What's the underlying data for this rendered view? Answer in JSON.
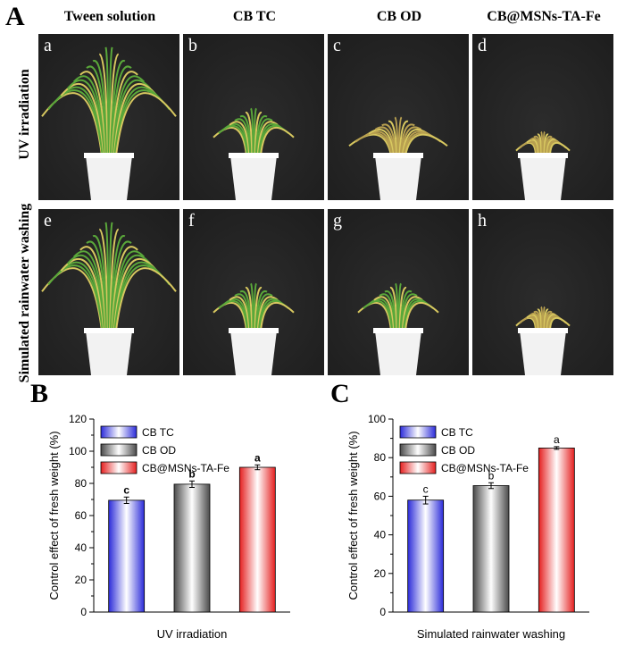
{
  "panel_letters": {
    "a": "A",
    "b": "B",
    "c": "C"
  },
  "column_titles": [
    "Tween solution",
    "CB TC",
    "CB OD",
    "CB@MSNs-TA-Fe"
  ],
  "row_titles": [
    "UV irradiation",
    "Simulated rainwater washing"
  ],
  "photos": [
    {
      "label": "a",
      "plant": "tall-healthy"
    },
    {
      "label": "b",
      "plant": "small-green"
    },
    {
      "label": "c",
      "plant": "yellowing"
    },
    {
      "label": "d",
      "plant": "wilted"
    },
    {
      "label": "e",
      "plant": "tall-healthy"
    },
    {
      "label": "f",
      "plant": "small-green"
    },
    {
      "label": "g",
      "plant": "small-green"
    },
    {
      "label": "h",
      "plant": "wilted"
    }
  ],
  "colors": {
    "photo_bg": "#1e1e1e",
    "pot": "#f2f2f2",
    "leaf_green": "#5aa83a",
    "leaf_yellow": "#b8a050",
    "bar_blue": "#2b2bd9",
    "bar_gray": "#4a4a4a",
    "bar_red": "#e52020"
  },
  "chart_data": [
    {
      "type": "bar",
      "panel": "B",
      "categories": [
        "CB TC",
        "CB OD",
        "CB@MSNs-TA-Fe"
      ],
      "values": [
        69.5,
        79.5,
        90
      ],
      "errors": [
        2,
        2,
        1.5
      ],
      "significance": [
        "c",
        "b",
        "a"
      ],
      "xlabel": "UV irradiation",
      "ylabel": "Control effect of fresh weight (%)",
      "ylim": [
        0,
        120
      ],
      "yticks": [
        "0",
        "20",
        "40",
        "60",
        "80",
        "100",
        "120"
      ],
      "legend": [
        "CB TC",
        "CB OD",
        "CB@MSNs-TA-Fe"
      ],
      "legend_position": "top-left",
      "grid": false
    },
    {
      "type": "bar",
      "panel": "C",
      "categories": [
        "CB TC",
        "CB OD",
        "CB@MSNs-TA-Fe"
      ],
      "values": [
        58,
        65.5,
        85
      ],
      "errors": [
        2,
        1.5,
        0.7
      ],
      "significance": [
        "c",
        "b",
        "a"
      ],
      "xlabel": "Simulated rainwater washing",
      "ylabel": "Control effect of fresh weight (%)",
      "ylim": [
        0,
        100
      ],
      "yticks": [
        "0",
        "20",
        "40",
        "60",
        "80",
        "100"
      ],
      "legend": [
        "CB TC",
        "CB OD",
        "CB@MSNs-TA-Fe"
      ],
      "legend_position": "top-left",
      "grid": false
    }
  ]
}
